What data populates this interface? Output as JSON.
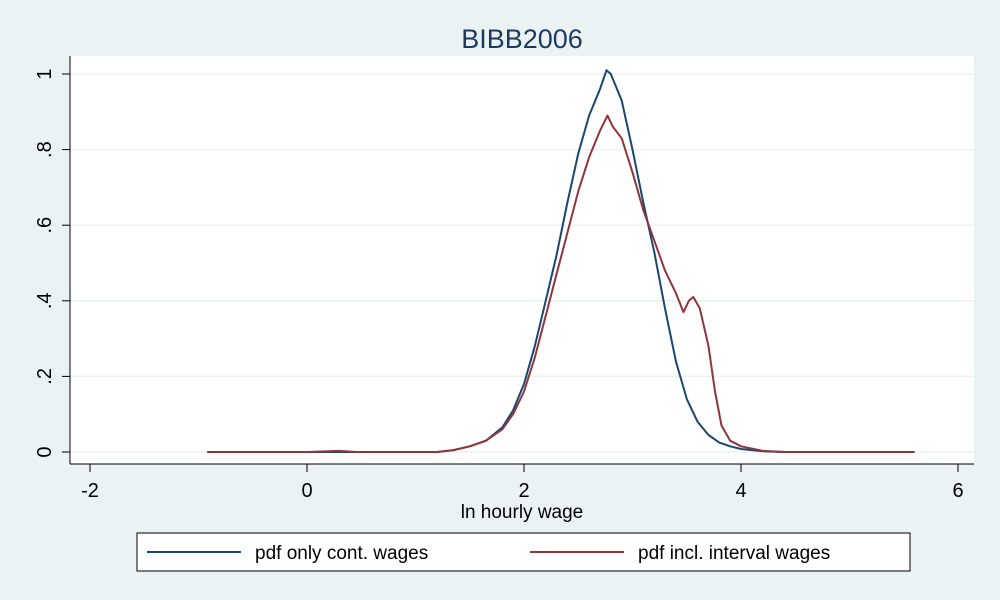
{
  "chart_data": {
    "type": "line",
    "title": "BIBB2006",
    "xlabel": "ln hourly wage",
    "ylabel": "",
    "xlim": [
      -2,
      6
    ],
    "ylim": [
      0,
      1
    ],
    "x_ticks": [
      "-2",
      "0",
      "2",
      "4",
      "6"
    ],
    "x_tick_values": [
      -2,
      0,
      2,
      4,
      6
    ],
    "y_ticks": [
      "0",
      ".2",
      ".4",
      ".6",
      ".8",
      "1"
    ],
    "y_tick_values": [
      0,
      0.2,
      0.4,
      0.6,
      0.8,
      1
    ],
    "grid": "horizontal",
    "legend_position": "bottom",
    "series": [
      {
        "name": "pdf only cont. wages",
        "color": "#1a476f",
        "points": [
          [
            -0.92,
            0.0
          ],
          [
            0.0,
            0.0
          ],
          [
            1.2,
            0.0
          ],
          [
            1.35,
            0.005
          ],
          [
            1.5,
            0.015
          ],
          [
            1.65,
            0.03
          ],
          [
            1.8,
            0.065
          ],
          [
            1.9,
            0.11
          ],
          [
            2.0,
            0.18
          ],
          [
            2.1,
            0.28
          ],
          [
            2.2,
            0.4
          ],
          [
            2.3,
            0.52
          ],
          [
            2.4,
            0.66
          ],
          [
            2.5,
            0.79
          ],
          [
            2.6,
            0.89
          ],
          [
            2.7,
            0.96
          ],
          [
            2.76,
            1.01
          ],
          [
            2.8,
            1.0
          ],
          [
            2.9,
            0.93
          ],
          [
            3.0,
            0.8
          ],
          [
            3.1,
            0.66
          ],
          [
            3.2,
            0.53
          ],
          [
            3.3,
            0.38
          ],
          [
            3.4,
            0.24
          ],
          [
            3.5,
            0.14
          ],
          [
            3.6,
            0.08
          ],
          [
            3.7,
            0.045
          ],
          [
            3.8,
            0.025
          ],
          [
            3.9,
            0.015
          ],
          [
            4.0,
            0.008
          ],
          [
            4.2,
            0.002
          ],
          [
            4.4,
            0.0
          ],
          [
            5.6,
            0.0
          ]
        ]
      },
      {
        "name": "pdf incl. interval wages",
        "color": "#90353b",
        "points": [
          [
            -0.92,
            0.0
          ],
          [
            0.0,
            0.0
          ],
          [
            0.3,
            0.003
          ],
          [
            0.45,
            0.0
          ],
          [
            1.2,
            0.0
          ],
          [
            1.35,
            0.005
          ],
          [
            1.5,
            0.015
          ],
          [
            1.65,
            0.03
          ],
          [
            1.8,
            0.06
          ],
          [
            1.9,
            0.1
          ],
          [
            2.0,
            0.16
          ],
          [
            2.1,
            0.25
          ],
          [
            2.2,
            0.36
          ],
          [
            2.3,
            0.47
          ],
          [
            2.4,
            0.58
          ],
          [
            2.5,
            0.69
          ],
          [
            2.6,
            0.78
          ],
          [
            2.7,
            0.85
          ],
          [
            2.77,
            0.89
          ],
          [
            2.82,
            0.86
          ],
          [
            2.9,
            0.83
          ],
          [
            3.0,
            0.74
          ],
          [
            3.1,
            0.64
          ],
          [
            3.2,
            0.56
          ],
          [
            3.3,
            0.48
          ],
          [
            3.4,
            0.42
          ],
          [
            3.47,
            0.37
          ],
          [
            3.52,
            0.4
          ],
          [
            3.56,
            0.41
          ],
          [
            3.62,
            0.38
          ],
          [
            3.7,
            0.28
          ],
          [
            3.76,
            0.16
          ],
          [
            3.82,
            0.07
          ],
          [
            3.9,
            0.03
          ],
          [
            4.0,
            0.015
          ],
          [
            4.2,
            0.003
          ],
          [
            4.4,
            0.0
          ],
          [
            5.6,
            0.0
          ]
        ]
      }
    ]
  }
}
